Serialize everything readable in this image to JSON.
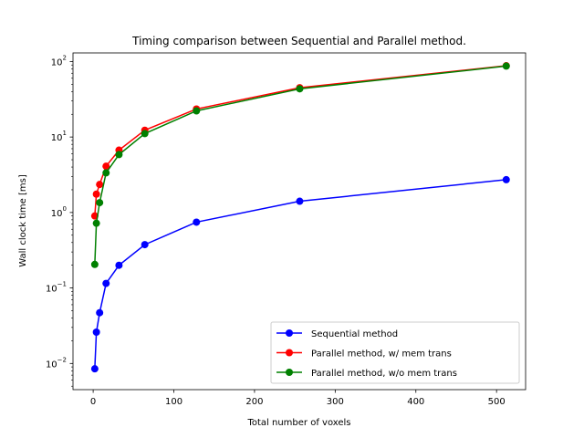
{
  "chart_data": {
    "type": "line",
    "title": "Timing comparison between Sequential and Parallel method.",
    "xlabel": "Total number of voxels",
    "ylabel": "Wall clock time [ms]",
    "xlim": [
      -25,
      536
    ],
    "ylim": [
      0.0045,
      130
    ],
    "yscale": "log",
    "grid": false,
    "legend_position": "lower-right",
    "x_ticks": [
      0,
      100,
      200,
      300,
      400,
      500
    ],
    "x_tick_labels": [
      "0",
      "100",
      "200",
      "300",
      "400",
      "500"
    ],
    "y_ticks": [
      0.01,
      0.1,
      1,
      10,
      100
    ],
    "y_tick_labels": [
      "10",
      "10",
      "10",
      "10",
      "10"
    ],
    "y_tick_exponents": [
      "−2",
      "−1",
      "0",
      "1",
      "2"
    ],
    "series": [
      {
        "name": "Sequential method",
        "color": "#0000ff",
        "x": [
          2,
          4,
          8,
          16,
          32,
          64,
          128,
          256,
          512
        ],
        "y": [
          0.0085,
          0.026,
          0.047,
          0.115,
          0.2,
          0.375,
          0.745,
          1.41,
          2.72
        ]
      },
      {
        "name": "Parallel method, w/ mem trans",
        "color": "#ff0000",
        "x": [
          2,
          4,
          8,
          16,
          32,
          64,
          128,
          256,
          512
        ],
        "y": [
          0.9,
          1.75,
          2.35,
          4.1,
          6.7,
          12.3,
          23.5,
          45,
          88
        ]
      },
      {
        "name": "Parallel method, w/o mem trans",
        "color": "#008000",
        "x": [
          2,
          4,
          8,
          16,
          32,
          64,
          128,
          256,
          512
        ],
        "y": [
          0.205,
          0.72,
          1.35,
          3.35,
          5.85,
          11.1,
          22.2,
          43.5,
          87
        ]
      }
    ]
  }
}
